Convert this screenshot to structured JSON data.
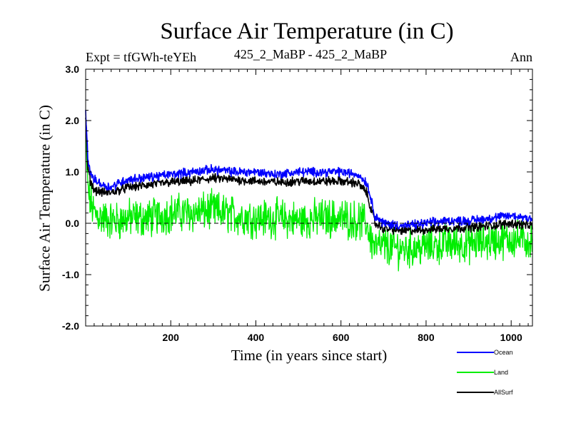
{
  "chart_data": {
    "type": "line",
    "title": "Surface Air Temperature (in C)",
    "left_label": "Expt = tfGWh-teYEh",
    "center_label": "425_2_MaBP - 425_2_MaBP",
    "right_label": "Ann",
    "xlabel": "Time (in years since start)",
    "ylabel": "Surface Air Temperature (in C)",
    "xlim": [
      0,
      1050
    ],
    "ylim": [
      -2.0,
      3.0
    ],
    "x_ticks": [
      200,
      400,
      600,
      800,
      1000
    ],
    "y_ticks": [
      "3.0",
      "2.0",
      "1.0",
      "0.0",
      "-1.0",
      "-2.0"
    ],
    "zero_line": true,
    "series": [
      {
        "name": "Ocean",
        "color": "#0000ff",
        "x": [
          0,
          5,
          10,
          20,
          40,
          60,
          80,
          100,
          150,
          200,
          250,
          300,
          350,
          400,
          450,
          500,
          550,
          600,
          640,
          660,
          670,
          680,
          700,
          750,
          800,
          850,
          900,
          950,
          1000,
          1050
        ],
        "values": [
          2.15,
          1.3,
          1.0,
          0.85,
          0.75,
          0.7,
          0.8,
          0.85,
          0.9,
          0.95,
          1.0,
          1.05,
          1.0,
          1.0,
          0.95,
          1.0,
          1.0,
          1.0,
          0.95,
          0.8,
          0.5,
          0.15,
          0.0,
          -0.05,
          0.0,
          0.05,
          0.05,
          0.1,
          0.15,
          0.1
        ]
      },
      {
        "name": "Land",
        "color": "#00ee00",
        "x": [
          0,
          5,
          10,
          20,
          40,
          60,
          80,
          100,
          150,
          200,
          250,
          300,
          350,
          400,
          450,
          500,
          550,
          600,
          640,
          660,
          670,
          680,
          700,
          750,
          800,
          850,
          900,
          950,
          1000,
          1050
        ],
        "values": [
          1.7,
          0.7,
          0.45,
          0.2,
          0.1,
          0.05,
          0.05,
          0.1,
          0.1,
          0.2,
          0.2,
          0.25,
          0.15,
          0.1,
          0.1,
          0.05,
          0.1,
          0.1,
          0.05,
          0.0,
          -0.3,
          -0.45,
          -0.45,
          -0.5,
          -0.45,
          -0.4,
          -0.4,
          -0.35,
          -0.3,
          -0.35
        ]
      },
      {
        "name": "AllSurf",
        "color": "#000000",
        "x": [
          0,
          5,
          10,
          20,
          40,
          60,
          80,
          100,
          150,
          200,
          250,
          300,
          350,
          400,
          450,
          500,
          550,
          600,
          640,
          660,
          670,
          680,
          700,
          750,
          800,
          850,
          900,
          950,
          1000,
          1050
        ],
        "values": [
          2.1,
          1.1,
          0.85,
          0.65,
          0.6,
          0.6,
          0.65,
          0.7,
          0.75,
          0.8,
          0.82,
          0.88,
          0.85,
          0.82,
          0.8,
          0.82,
          0.82,
          0.82,
          0.78,
          0.6,
          0.3,
          0.0,
          -0.1,
          -0.15,
          -0.12,
          -0.1,
          -0.08,
          -0.05,
          0.0,
          -0.05
        ]
      }
    ],
    "legend": [
      {
        "label": "Ocean",
        "color": "#0000ff"
      },
      {
        "label": "Land",
        "color": "#00ee00"
      },
      {
        "label": "AllSurf",
        "color": "#000000"
      }
    ],
    "legend_position": "bottom-right"
  }
}
